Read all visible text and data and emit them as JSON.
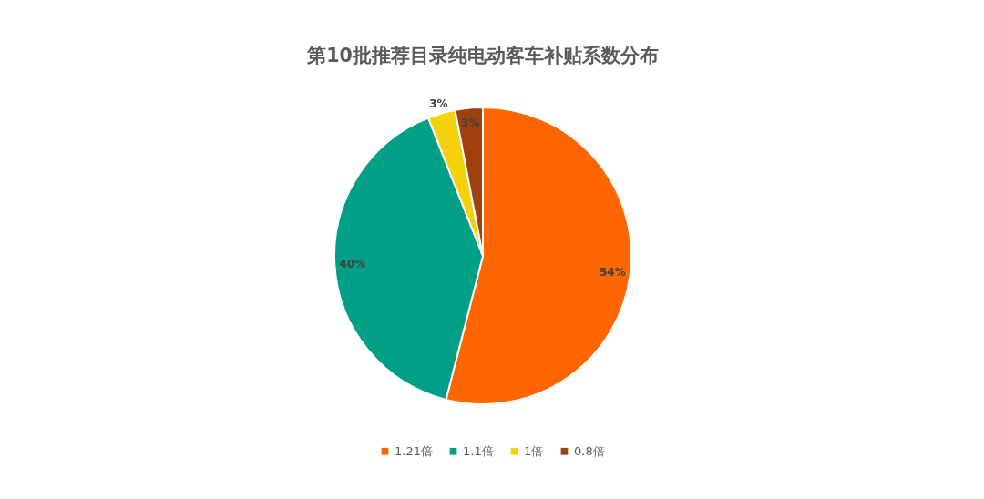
{
  "chart_data": {
    "type": "pie",
    "title": "第10批推荐目录纯电动客车补贴系数分布",
    "categories": [
      "1.21倍",
      "1.1倍",
      "1倍",
      "0.8倍"
    ],
    "values": [
      54,
      40,
      3,
      3
    ],
    "colors": [
      "#ff6600",
      "#00a086",
      "#f5d10c",
      "#a0400f"
    ],
    "value_labels": [
      "54%",
      "40%",
      "3%",
      "3%"
    ],
    "legend": "bottom"
  }
}
